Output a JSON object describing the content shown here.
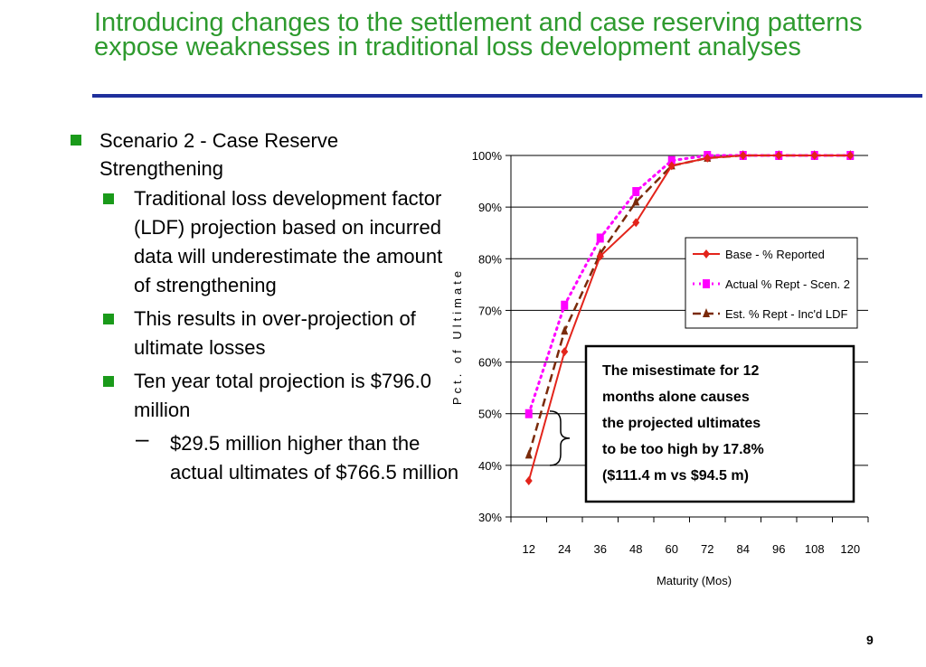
{
  "slide": {
    "title": "Introducing changes to the settlement and case reserving patterns expose weaknesses in traditional loss development analyses",
    "page_number": "9"
  },
  "content": {
    "bullet1": "Scenario 2 - Case Reserve Strengthening",
    "sub_bullets": [
      "Traditional loss development factor (LDF) projection based on incurred data will underestimate the amount of strengthening",
      "This results in over-projection of ultimate losses",
      "Ten year total projection is $796.0 million"
    ],
    "dash_bullet": "$29.5 million higher than the actual ultimates of $766.5 million"
  },
  "colors": {
    "title": "#2e9a2e",
    "title_rule": "#1f2f9c",
    "bullet": "#1a9a1a",
    "base_series": "#e3241b",
    "actual_series": "#ff00ff",
    "est_series": "#7a2a0a"
  },
  "chart_data": {
    "type": "line",
    "title": "",
    "xlabel": "Maturity (Mos)",
    "ylabel": "Pct. of Ultimate",
    "categories": [
      "12",
      "24",
      "36",
      "48",
      "60",
      "72",
      "84",
      "96",
      "108",
      "120"
    ],
    "ylim": [
      0.3,
      1.0
    ],
    "yticks": [
      "30%",
      "40%",
      "50%",
      "60%",
      "70%",
      "80%",
      "90%",
      "100%"
    ],
    "grid": "horizontal",
    "legend_position": "right-middle",
    "series": [
      {
        "name": "Base - % Reported",
        "marker": "diamond",
        "line": "solid",
        "color": "#e3241b",
        "values": [
          0.37,
          0.62,
          0.805,
          0.87,
          0.98,
          0.995,
          1.0,
          1.0,
          1.0,
          1.0
        ]
      },
      {
        "name": "Actual % Rept - Scen. 2",
        "marker": "square",
        "line": "dotted",
        "color": "#ff00ff",
        "values": [
          0.5,
          0.71,
          0.84,
          0.93,
          0.99,
          1.0,
          1.0,
          1.0,
          1.0,
          1.0
        ]
      },
      {
        "name": "Est. % Rept - Inc'd LDF",
        "marker": "triangle",
        "line": "dashed",
        "color": "#7a2a0a",
        "values": [
          0.42,
          0.66,
          0.81,
          0.91,
          0.98,
          0.995,
          1.0,
          1.0,
          1.0,
          1.0
        ]
      }
    ],
    "annotation": {
      "lines": [
        "The misestimate for 12",
        "months alone causes",
        "the projected ultimates",
        "to be too high by 17.8%",
        "($111.4 m vs $94.5 m)"
      ]
    }
  }
}
